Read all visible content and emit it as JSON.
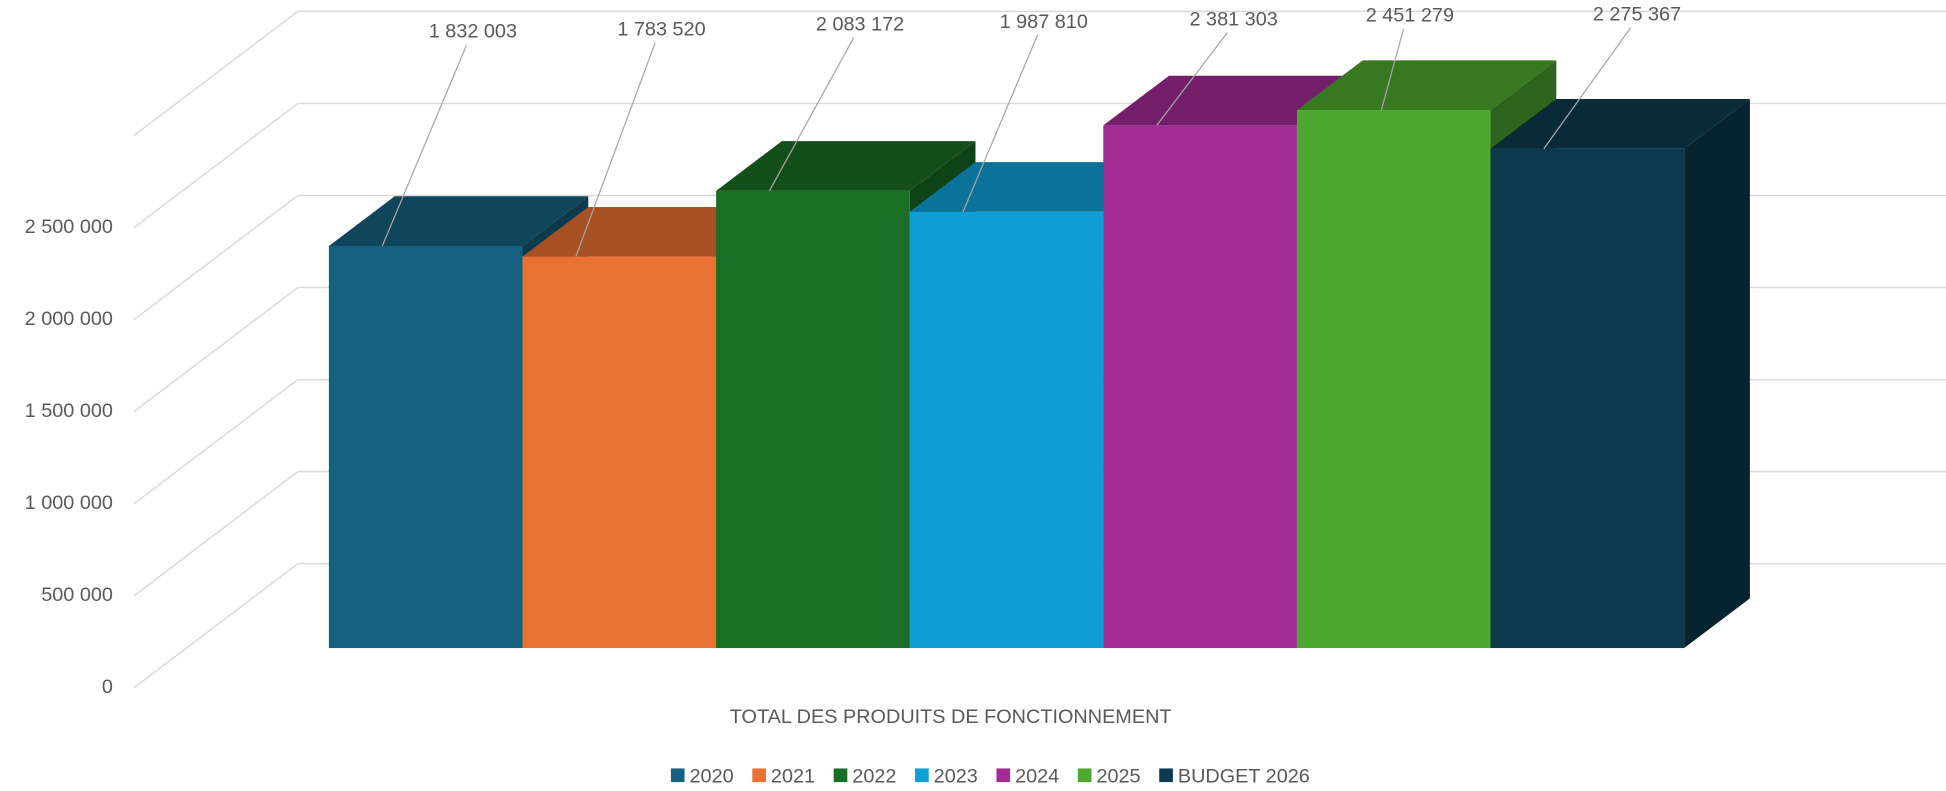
{
  "chart_data": {
    "type": "bar3d",
    "categories": [
      "TOTAL DES PRODUITS DE FONCTIONNEMENT"
    ],
    "series": [
      {
        "name": "2020",
        "color": "#16607f",
        "values": [
          1832003
        ],
        "value_labels": [
          "1 832 003"
        ]
      },
      {
        "name": "2021",
        "color": "#e97132",
        "values": [
          1783520
        ],
        "value_labels": [
          "1 783 520"
        ]
      },
      {
        "name": "2022",
        "color": "#1b6e26",
        "values": [
          2083172
        ],
        "value_labels": [
          "2 083 172"
        ]
      },
      {
        "name": "2023",
        "color": "#0f9ed5",
        "values": [
          1987810
        ],
        "value_labels": [
          "1 987 810"
        ]
      },
      {
        "name": "2024",
        "color": "#a02b93",
        "values": [
          2381303
        ],
        "value_labels": [
          "2 381 303"
        ]
      },
      {
        "name": "2025",
        "color": "#4ea72e",
        "values": [
          2451279
        ],
        "value_labels": [
          "2 451 279"
        ]
      },
      {
        "name": "BUDGET 2026",
        "color": "#0b3a4f",
        "values": [
          2275367
        ],
        "value_labels": [
          "2 275 367"
        ]
      }
    ],
    "ylim": [
      0,
      3000000
    ],
    "yticks": [
      {
        "value": 0,
        "label": "0"
      },
      {
        "value": 500000,
        "label": "500 000"
      },
      {
        "value": 1000000,
        "label": "1 000 000"
      },
      {
        "value": 1500000,
        "label": "1 500 000"
      },
      {
        "value": 2000000,
        "label": "2 000 000"
      },
      {
        "value": 2500000,
        "label": "2 500 000"
      }
    ],
    "grid": true,
    "legend": "bottom"
  }
}
